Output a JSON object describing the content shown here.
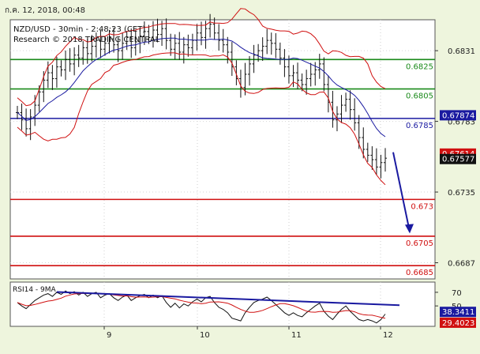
{
  "header": {
    "timestamp": "ก.ค. 12, 2018, 00:48"
  },
  "chart_data": {
    "type": "ohlc",
    "title": "NZD/USD - 30min - 2:48:23 (CET)",
    "subtitle": "Research © 2018 TRADING CENTRAL",
    "price_axis": {
      "min": 0.6676,
      "max": 0.6852,
      "ticks": [
        "0.6831",
        "0.6783",
        "0.6735",
        "0.6687"
      ]
    },
    "x_ticks": [
      "9",
      "10",
      "11",
      "12"
    ],
    "resistance_levels": [
      {
        "value": 0.6825,
        "label": "0.6825",
        "color": "#1a8a1a"
      },
      {
        "value": 0.6805,
        "label": "0.6805",
        "color": "#1a8a1a"
      }
    ],
    "pivot_level": {
      "value": 0.6785,
      "label": "0.6785",
      "color": "#1a1aa0"
    },
    "support_levels": [
      {
        "value": 0.673,
        "label": "0.673",
        "color": "#d01010"
      },
      {
        "value": 0.6705,
        "label": "0.6705",
        "color": "#d01010"
      },
      {
        "value": 0.6685,
        "label": "0.6685",
        "color": "#d01010"
      }
    ],
    "badges": [
      {
        "value": 0.67874,
        "label": "0.67874",
        "bg": "#1a1aa0"
      },
      {
        "value": 0.67614,
        "label": "0.67614",
        "bg": "#d01010"
      },
      {
        "value": 0.67577,
        "label": "0.67577",
        "bg": "#111111"
      }
    ],
    "price_close": [
      0.6789,
      0.6784,
      0.6778,
      0.6786,
      0.6794,
      0.6803,
      0.6811,
      0.6816,
      0.6812,
      0.682,
      0.6818,
      0.6825,
      0.6822,
      0.6828,
      0.6826,
      0.6833,
      0.6829,
      0.6834,
      0.6838,
      0.6832,
      0.6836,
      0.6839,
      0.6835,
      0.6831,
      0.6836,
      0.684,
      0.6833,
      0.6837,
      0.6841,
      0.6844,
      0.684,
      0.6845,
      0.6842,
      0.6846,
      0.6838,
      0.6832,
      0.6836,
      0.683,
      0.6835,
      0.6833,
      0.6838,
      0.6843,
      0.684,
      0.6846,
      0.6849,
      0.6843,
      0.6838,
      0.6835,
      0.683,
      0.682,
      0.6812,
      0.6806,
      0.6815,
      0.6822,
      0.6828,
      0.6831,
      0.6834,
      0.6838,
      0.6836,
      0.6832,
      0.6826,
      0.682,
      0.6814,
      0.6816,
      0.6811,
      0.6808,
      0.6812,
      0.6815,
      0.6818,
      0.6822,
      0.6808,
      0.6796,
      0.6784,
      0.6788,
      0.6794,
      0.6798,
      0.6791,
      0.6782,
      0.6772,
      0.6764,
      0.676,
      0.6757,
      0.6752,
      0.6755,
      0.6758
    ],
    "rsi": {
      "label": "RSI14 - 9MA",
      "min": 20,
      "max": 85,
      "ticks": [
        "70",
        "50"
      ],
      "badges": [
        {
          "value": 38.3411,
          "label": "38.3411",
          "bg": "#1a1aa0"
        },
        {
          "value": 29.4023,
          "label": "29.4023",
          "bg": "#d01010"
        }
      ],
      "values": [
        55,
        50,
        46,
        52,
        58,
        62,
        66,
        68,
        64,
        70,
        67,
        72,
        68,
        71,
        66,
        70,
        64,
        68,
        70,
        62,
        66,
        68,
        62,
        58,
        63,
        66,
        58,
        62,
        65,
        67,
        62,
        66,
        62,
        65,
        55,
        48,
        54,
        47,
        53,
        50,
        56,
        60,
        56,
        62,
        64,
        55,
        48,
        45,
        40,
        32,
        30,
        28,
        40,
        48,
        55,
        58,
        60,
        63,
        58,
        52,
        46,
        40,
        36,
        40,
        36,
        34,
        40,
        45,
        50,
        54,
        42,
        35,
        30,
        38,
        45,
        50,
        42,
        36,
        30,
        28,
        30,
        28,
        25,
        30,
        38
      ]
    }
  }
}
